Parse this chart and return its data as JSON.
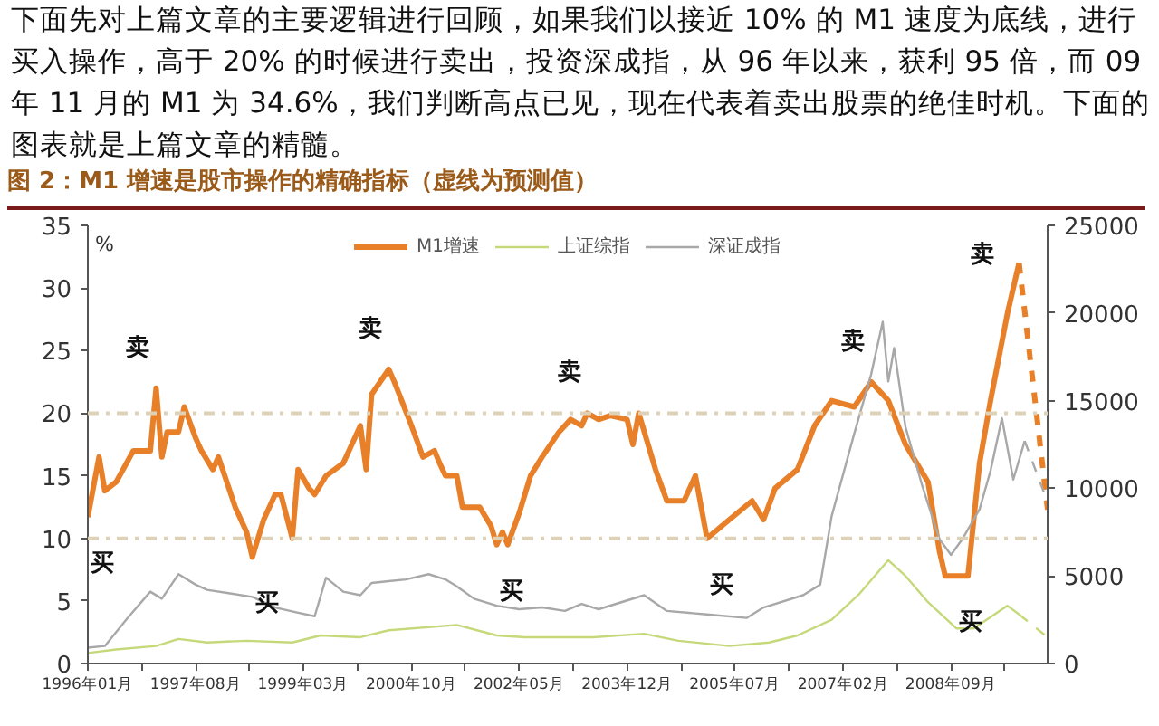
{
  "chart_data": {
    "type": "line",
    "title": "图 2：M1 增速是股市操作的精确指标（虚线为预测值）",
    "ylabel": "%",
    "annotations": [
      "下面先对上篇文章的主要逻辑进行回顾，如果我们以接近 10% 的 M1 速度为底线，进行买入操作，高于 20% 的时候进行卖出，投资深成指，从 96 年以来，获利 95 倍，而 09 年 11 月的 M1 为 34.6%，我们判断高点已见，现在代表着卖出股票的绝佳时机。下面的图表就是上篇文章的精髓。",
      {
        "text": "卖",
        "x": "1997-01",
        "y": 22
      },
      {
        "text": "卖",
        "x": "2000-06",
        "y": 23.5
      },
      {
        "text": "卖",
        "x": "2003-05",
        "y": 20
      },
      {
        "text": "卖",
        "x": "2007-07",
        "y": 22.5
      },
      {
        "text": "卖",
        "x": "2009-09",
        "y": 32
      },
      {
        "text": "买",
        "x": "1996-01",
        "y": 11.7
      },
      {
        "text": "买",
        "x": "1998-06",
        "y": 8.5
      },
      {
        "text": "买",
        "x": "2002-01",
        "y": 9.5
      },
      {
        "text": "买",
        "x": "2005-02",
        "y": 10
      },
      {
        "text": "买",
        "x": "2008-10",
        "y": 7
      }
    ],
    "xlim": [
      "1996-01",
      "2010-02"
    ],
    "xticks": [
      {
        "value": "1996-01",
        "label": "1996年01月"
      },
      {
        "value": "1996-10-16",
        "label": null
      },
      {
        "value": "1997-08",
        "label": "1997年08月"
      },
      {
        "value": "1998-05-16",
        "label": null
      },
      {
        "value": "1999-03",
        "label": "1999年03月"
      },
      {
        "value": "1999-12-16",
        "label": null
      },
      {
        "value": "2000-10",
        "label": "2000年10月"
      },
      {
        "value": "2001-07-16",
        "label": null
      },
      {
        "value": "2002-05",
        "label": "2002年05月"
      },
      {
        "value": "2003-02-16",
        "label": null
      },
      {
        "value": "2003-12",
        "label": "2003年12月"
      },
      {
        "value": "2004-09-16",
        "label": null
      },
      {
        "value": "2005-07",
        "label": "2005年07月"
      },
      {
        "value": "2006-04-16",
        "label": null
      },
      {
        "value": "2007-02",
        "label": "2007年02月"
      },
      {
        "value": "2007-11-16",
        "label": null
      },
      {
        "value": "2008-09",
        "label": "2008年09月"
      },
      {
        "value": "2009-06-16",
        "label": null
      }
    ],
    "ylim": [
      0,
      35
    ],
    "yticks": [
      0,
      5,
      10,
      15,
      20,
      25,
      30,
      35
    ],
    "y2lim": [
      0,
      25000
    ],
    "y2ticks": [
      0,
      5000,
      10000,
      15000,
      20000,
      25000
    ],
    "grid": false,
    "legend": "top",
    "marker": "none",
    "ref_lines": [
      {
        "axis": "y",
        "value": 20,
        "color": "#ddd2b8",
        "line_style": "dashdot"
      },
      {
        "axis": "y",
        "value": 10,
        "color": "#ddd2b8",
        "line_style": "dashdot"
      }
    ],
    "series": [
      {
        "name": "M1增速",
        "color": "#e8802a",
        "line_style": "solid",
        "x": [
          "1996-01",
          "1996-03",
          "1996-04",
          "1996-06",
          "1996-09",
          "1996-12",
          "1997-01",
          "1997-02",
          "1997-03",
          "1997-05",
          "1997-06",
          "1997-08",
          "1997-09",
          "1997-11",
          "1997-12",
          "1998-03",
          "1998-05",
          "1998-06",
          "1998-08",
          "1998-10",
          "1998-11",
          "1999-01",
          "1999-02",
          "1999-04",
          "1999-05",
          "1999-07",
          "1999-10",
          "2000-01",
          "2000-02",
          "2000-03",
          "2000-06",
          "2000-07",
          "2000-10",
          "2000-12",
          "2001-02",
          "2001-03",
          "2001-04",
          "2001-06",
          "2001-07",
          "2001-10",
          "2001-12",
          "2002-01",
          "2002-02",
          "2002-03",
          "2002-05",
          "2002-07",
          "2002-09",
          "2002-12",
          "2003-02",
          "2003-04",
          "2003-05",
          "2003-07",
          "2003-09",
          "2003-12",
          "2004-01",
          "2004-02",
          "2004-05",
          "2004-07",
          "2004-10",
          "2004-12",
          "2005-02",
          "2005-06",
          "2005-10",
          "2005-12",
          "2006-02",
          "2006-06",
          "2006-09",
          "2006-12",
          "2007-04",
          "2007-07",
          "2007-10",
          "2008-01",
          "2008-05",
          "2008-07",
          "2008-08",
          "2008-10",
          "2008-12",
          "2009-02",
          "2009-04",
          "2009-07",
          "2009-09"
        ],
        "values": [
          11.7,
          16.5,
          13.8,
          14.5,
          17,
          17,
          22,
          16.5,
          18.5,
          18.5,
          20.5,
          18,
          17,
          15.5,
          16.5,
          12.5,
          10.5,
          8.5,
          11.5,
          13.5,
          13.5,
          10,
          15.5,
          14,
          13.5,
          15,
          16,
          19,
          15.5,
          21.5,
          23.5,
          22.5,
          19,
          16.5,
          17,
          16,
          15,
          15,
          12.5,
          12.5,
          11,
          9.5,
          10.5,
          9.5,
          12,
          15,
          16.5,
          18.5,
          19.5,
          19,
          20,
          19.5,
          19.8,
          19.5,
          17.5,
          20,
          15.5,
          13,
          13,
          15,
          10,
          11.5,
          13,
          11.5,
          14,
          15.5,
          19,
          21,
          20.5,
          22.5,
          21,
          17.5,
          14.5,
          9,
          7,
          7,
          7,
          16,
          21,
          28,
          32
        ]
      },
      {
        "name": "上证综指",
        "color": "#c5d97a",
        "line_style": "solid",
        "axis": "y2",
        "x": [
          "1996-01",
          "1996-06",
          "1997-01",
          "1997-05",
          "1997-10",
          "1998-05",
          "1999-01",
          "1999-06",
          "2000-01",
          "2000-06",
          "2001-06",
          "2002-01",
          "2002-06",
          "2003-01",
          "2003-06",
          "2004-03",
          "2004-09",
          "2005-06",
          "2006-01",
          "2006-06",
          "2006-12",
          "2007-05",
          "2007-10",
          "2008-01",
          "2008-05",
          "2008-10",
          "2009-01",
          "2009-07",
          "2009-09"
        ],
        "values": [
          600,
          800,
          1000,
          1400,
          1200,
          1300,
          1200,
          1600,
          1500,
          1900,
          2200,
          1600,
          1500,
          1500,
          1500,
          1700,
          1300,
          1000,
          1200,
          1600,
          2500,
          4000,
          5900,
          5000,
          3500,
          2000,
          2000,
          3300,
          2800
        ]
      },
      {
        "name": "深证成指",
        "color": "#a8a8a8",
        "line_style": "solid",
        "axis": "y2",
        "x": [
          "1996-01",
          "1996-04",
          "1996-08",
          "1996-12",
          "1997-02",
          "1997-05",
          "1997-08",
          "1997-10",
          "1998-02",
          "1998-06",
          "1998-10",
          "1999-02",
          "1999-05",
          "1999-07",
          "1999-10",
          "2000-01",
          "2000-03",
          "2000-06",
          "2000-09",
          "2001-01",
          "2001-04",
          "2001-06",
          "2001-09",
          "2002-01",
          "2002-05",
          "2002-09",
          "2003-01",
          "2003-04",
          "2003-07",
          "2004-03",
          "2004-07",
          "2005-02",
          "2005-09",
          "2005-12",
          "2006-07",
          "2006-10",
          "2006-12",
          "2007-04",
          "2007-07",
          "2007-09",
          "2007-10",
          "2007-11",
          "2008-01",
          "2008-04",
          "2008-07",
          "2008-09",
          "2008-11",
          "2009-02",
          "2009-04",
          "2009-06",
          "2009-08",
          "2009-10"
        ],
        "values": [
          900,
          1000,
          2600,
          4100,
          3700,
          5100,
          4500,
          4200,
          4000,
          3800,
          3200,
          2900,
          2700,
          4900,
          4100,
          3900,
          4600,
          4700,
          4800,
          5100,
          4800,
          4400,
          3700,
          3300,
          3100,
          3200,
          3000,
          3400,
          3100,
          3900,
          3000,
          2800,
          2600,
          3200,
          3900,
          4500,
          8400,
          13100,
          16500,
          19500,
          16100,
          18000,
          13500,
          10100,
          7100,
          6200,
          7100,
          8800,
          11000,
          14000,
          10500,
          12700
        ]
      },
      {
        "color": "#e8802a",
        "line_style": "dashed",
        "x": [
          "2009-09",
          "2010-02"
        ],
        "values": [
          32,
          12.3
        ]
      },
      {
        "color": "#c5d97a",
        "line_style": "dashed",
        "axis": "y2",
        "x": [
          "2009-09",
          "2010-02"
        ],
        "values": [
          2800,
          1500
        ]
      },
      {
        "color": "#a8a8a8",
        "line_style": "dashed",
        "axis": "y2",
        "x": [
          "2009-10",
          "2010-02"
        ],
        "values": [
          12700,
          9200
        ]
      }
    ]
  }
}
